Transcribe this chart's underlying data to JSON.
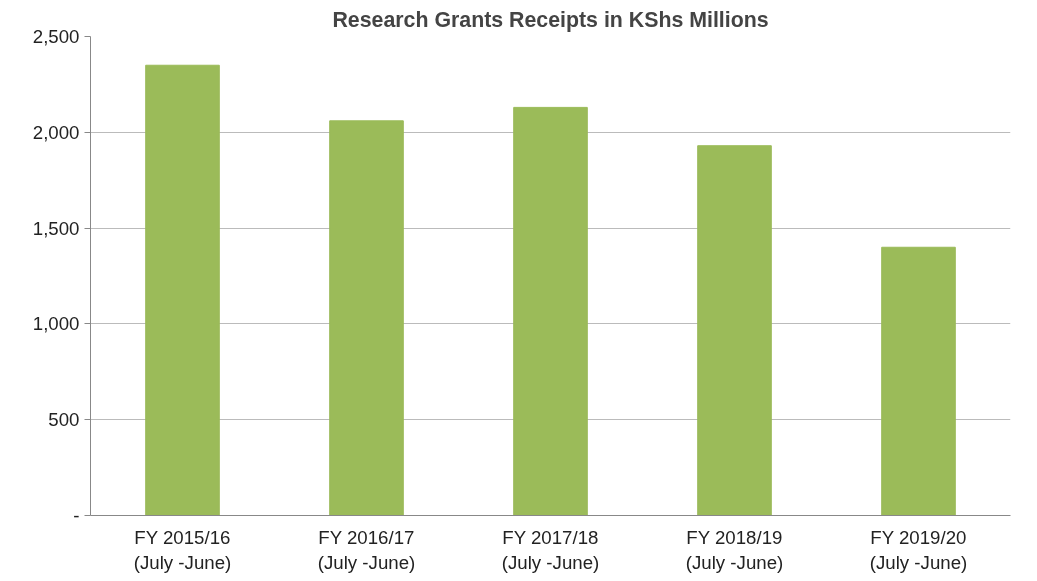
{
  "chart_data": {
    "type": "bar",
    "title": "Research Grants Receipts in KShs Millions",
    "categories": [
      "FY 2015/16\n(July -June)",
      "FY 2016/17\n(July -June)",
      "FY 2017/18\n(July -June)",
      "FY 2018/19\n(July -June)",
      "FY 2019/20\n(July -June)"
    ],
    "values": [
      2350,
      2060,
      2130,
      1930,
      1400
    ],
    "color": "#9bbb59",
    "ylim": [
      0,
      2500
    ],
    "yticks": [
      {
        "value": 0,
        "label": "-"
      },
      {
        "value": 500,
        "label": "500"
      },
      {
        "value": 1000,
        "label": "1,000"
      },
      {
        "value": 1500,
        "label": "1,500"
      },
      {
        "value": 2000,
        "label": "2,000"
      },
      {
        "value": 2500,
        "label": "2,500"
      }
    ],
    "grid": "y"
  }
}
